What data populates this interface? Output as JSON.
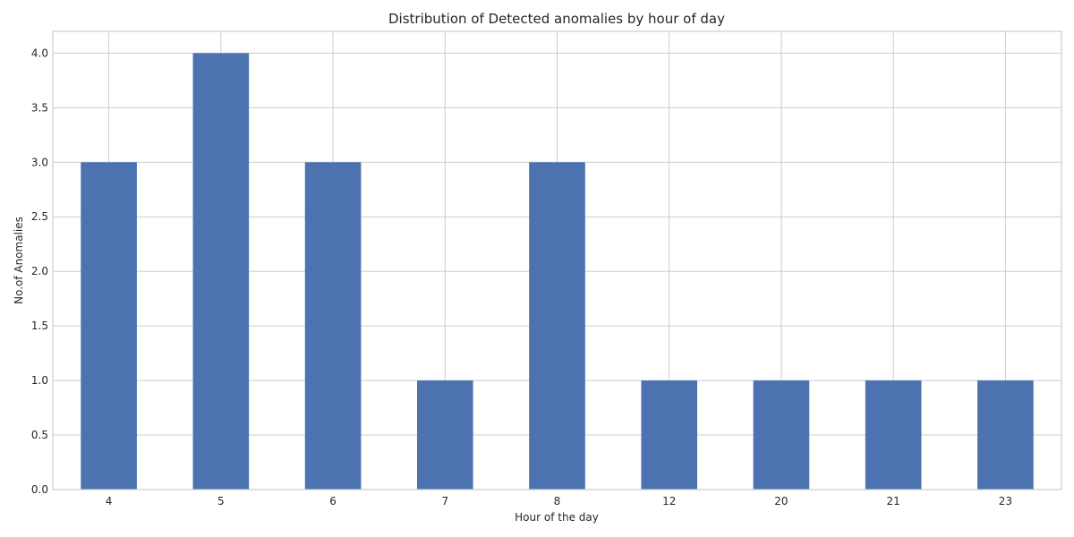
{
  "chart_data": {
    "type": "bar",
    "title": "Distribution of Detected anomalies by hour of day",
    "xlabel": "Hour of the day",
    "ylabel": "No.of Anomalies",
    "categories": [
      "4",
      "5",
      "6",
      "7",
      "8",
      "12",
      "20",
      "21",
      "23"
    ],
    "values": [
      3,
      4,
      3,
      1,
      3,
      1,
      1,
      1,
      1
    ],
    "ylim": [
      0,
      4.2
    ],
    "yticks": [
      "0.0",
      "0.5",
      "1.0",
      "1.5",
      "2.0",
      "2.5",
      "3.0",
      "3.5",
      "4.0"
    ],
    "grid": true,
    "bar_color": "#4c72b0",
    "grid_color": "#cccccc"
  }
}
